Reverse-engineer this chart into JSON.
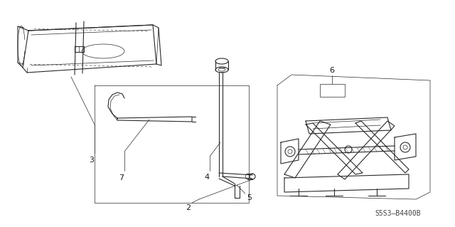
{
  "bg_color": "#ffffff",
  "line_color": "#2a2a2a",
  "label_color": "#1a1a1a",
  "diagram_code": "S5S3–B4400B",
  "figsize": [
    6.4,
    3.19
  ],
  "dpi": 100
}
